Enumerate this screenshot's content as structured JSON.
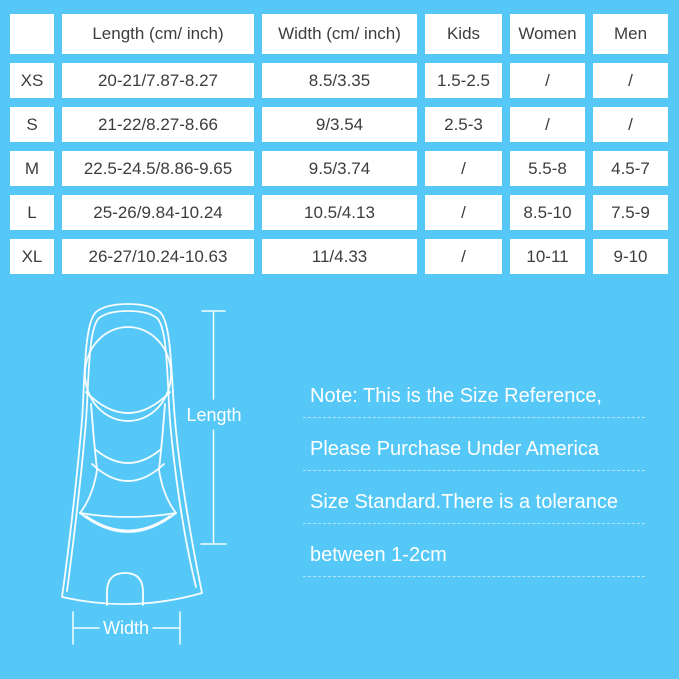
{
  "colors": {
    "background": "#55c8f7",
    "cell_background": "#ffffff",
    "table_text": "#3d3d3d",
    "note_text": "#ffffff",
    "line_art": "#ffffff"
  },
  "table": {
    "columns": [
      "",
      "Length (cm/ inch)",
      "Width (cm/ inch)",
      "Kids",
      "Women",
      "Men"
    ],
    "rows": [
      [
        "XS",
        "20-21/7.87-8.27",
        "8.5/3.35",
        "1.5-2.5",
        "/",
        "/"
      ],
      [
        "S",
        "21-22/8.27-8.66",
        "9/3.54",
        "2.5-3",
        "/",
        "/"
      ],
      [
        "M",
        "22.5-24.5/8.86-9.65",
        "9.5/3.74",
        "/",
        "5.5-8",
        "4.5-7"
      ],
      [
        "L",
        "25-26/9.84-10.24",
        "10.5/4.13",
        "/",
        "8.5-10",
        "7.5-9"
      ],
      [
        "XL",
        "26-27/10.24-10.63",
        "11/4.33",
        "/",
        "10-11",
        "9-10"
      ]
    ]
  },
  "diagram": {
    "length_label": "Length",
    "width_label": "Width"
  },
  "note": {
    "lines": [
      "Note: This is the Size Reference,",
      "Please Purchase Under America",
      "Size Standard.There is a tolerance",
      "between 1-2cm"
    ]
  }
}
